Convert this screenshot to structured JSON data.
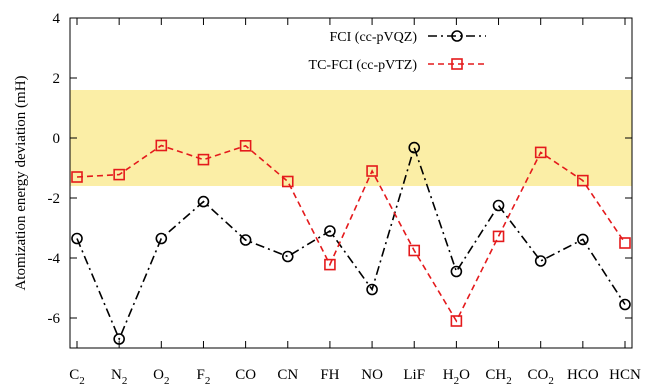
{
  "chart_data": {
    "type": "line",
    "categories": [
      "C2",
      "N2",
      "O2",
      "F2",
      "CO",
      "CN",
      "FH",
      "NO",
      "LiF",
      "H2O",
      "CH2",
      "CO2",
      "HCO",
      "HCN"
    ],
    "category_labels": [
      {
        "base": "C",
        "sub": "2"
      },
      {
        "base": "N",
        "sub": "2"
      },
      {
        "base": "O",
        "sub": "2"
      },
      {
        "base": "F",
        "sub": "2"
      },
      {
        "base": "CO",
        "sub": ""
      },
      {
        "base": "CN",
        "sub": ""
      },
      {
        "base": "FH",
        "sub": ""
      },
      {
        "base": "NO",
        "sub": ""
      },
      {
        "base": "LiF",
        "sub": ""
      },
      {
        "base": "H",
        "sub": "2",
        "tail": "O"
      },
      {
        "base": "CH",
        "sub": "2"
      },
      {
        "base": "CO",
        "sub": "2"
      },
      {
        "base": "HCO",
        "sub": ""
      },
      {
        "base": "HCN",
        "sub": ""
      }
    ],
    "series": [
      {
        "name": "FCI (cc-pVQZ)",
        "color": "#000000",
        "marker": "circle",
        "line_style": "dash-dot",
        "values": [
          -3.35,
          -6.7,
          -3.35,
          -2.12,
          -3.4,
          -3.95,
          -3.1,
          -5.05,
          -0.32,
          -4.45,
          -2.25,
          -4.1,
          -3.38,
          -5.55
        ]
      },
      {
        "name": "TC-FCI (cc-pVTZ)",
        "color": "#e41a1c",
        "marker": "square",
        "line_style": "dashed",
        "values": [
          -1.3,
          -1.22,
          -0.25,
          -0.72,
          -0.26,
          -1.45,
          -4.22,
          -1.1,
          -3.75,
          -6.1,
          -3.28,
          -0.48,
          -1.42,
          -3.5
        ]
      }
    ],
    "band": {
      "ymin": -1.6,
      "ymax": 1.6,
      "color": "#fbeea6"
    },
    "ylabel": "Atomization energy deviation (mH)",
    "xlabel": "",
    "ylim": [
      -7,
      4
    ],
    "yticks": [
      -6,
      -4,
      -2,
      0,
      2,
      4
    ],
    "ytick_labels": [
      "-6",
      "-4",
      "-2",
      "0",
      "2",
      "4"
    ],
    "legend_position": "top-right",
    "grid": false
  }
}
